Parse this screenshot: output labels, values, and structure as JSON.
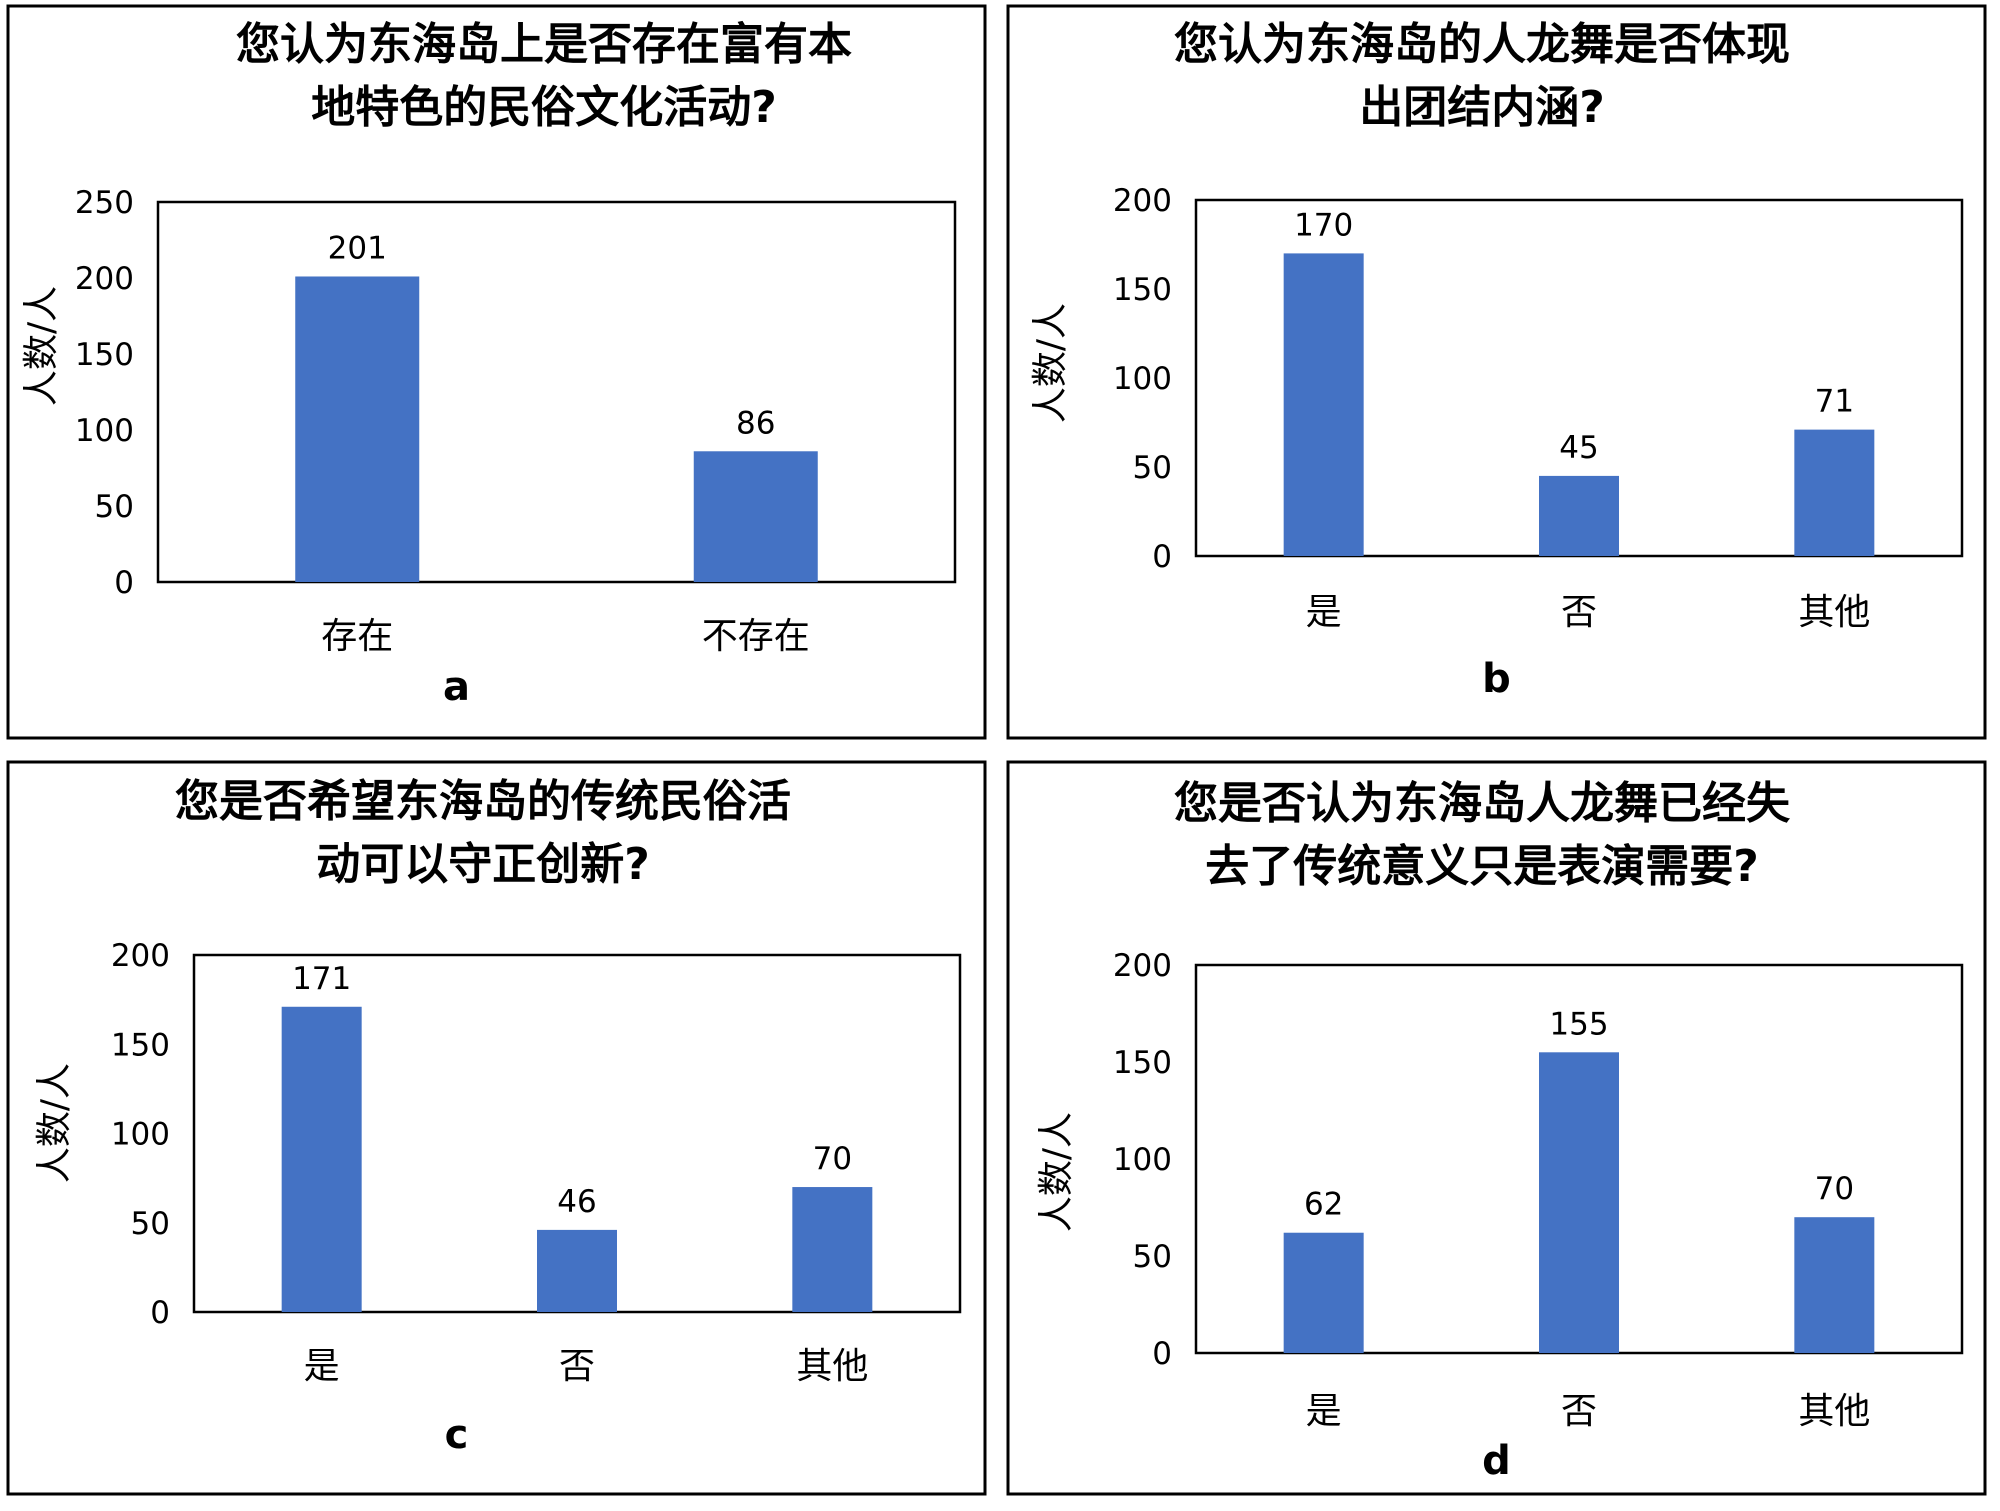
{
  "colors": {
    "bar": "#4472c4",
    "frame": "#000000",
    "background": "#ffffff"
  },
  "chart_data": [
    {
      "type": "bar",
      "panel_label": "a",
      "title_lines": [
        "您认为东海岛上是否存在富有本",
        "地特色的民俗文化活动?"
      ],
      "categories": [
        "存在",
        "不存在"
      ],
      "values": [
        201,
        86
      ],
      "data_labels": [
        "201",
        "86"
      ],
      "ylabel": "人数/人",
      "ylim": [
        0,
        250
      ],
      "yticks": [
        0,
        50,
        100,
        150,
        200,
        250
      ],
      "grid": false
    },
    {
      "type": "bar",
      "panel_label": "b",
      "title_lines": [
        "您认为东海岛的人龙舞是否体现",
        "出团结内涵?"
      ],
      "categories": [
        "是",
        "否",
        "其他"
      ],
      "values": [
        170,
        45,
        71
      ],
      "data_labels": [
        "170",
        "45",
        "71"
      ],
      "ylabel": "人数/人",
      "ylim": [
        0,
        200
      ],
      "yticks": [
        0,
        50,
        100,
        150,
        200
      ],
      "grid": false
    },
    {
      "type": "bar",
      "panel_label": "c",
      "title_lines": [
        "您是否希望东海岛的传统民俗活",
        "动可以守正创新?"
      ],
      "categories": [
        "是",
        "否",
        "其他"
      ],
      "values": [
        171,
        46,
        70
      ],
      "data_labels": [
        "171",
        "46",
        "70"
      ],
      "ylabel": "人数/人",
      "ylim": [
        0,
        200
      ],
      "yticks": [
        0,
        50,
        100,
        150,
        200
      ],
      "grid": false
    },
    {
      "type": "bar",
      "panel_label": "d",
      "title_lines": [
        "您是否认为东海岛人龙舞已经失",
        "去了传统意义只是表演需要?"
      ],
      "categories": [
        "是",
        "否",
        "其他"
      ],
      "values": [
        62,
        155,
        70
      ],
      "data_labels": [
        "62",
        "155",
        "70"
      ],
      "ylabel": "人数/人",
      "ylim": [
        0,
        200
      ],
      "yticks": [
        0,
        50,
        100,
        150,
        200
      ],
      "grid": false
    }
  ]
}
